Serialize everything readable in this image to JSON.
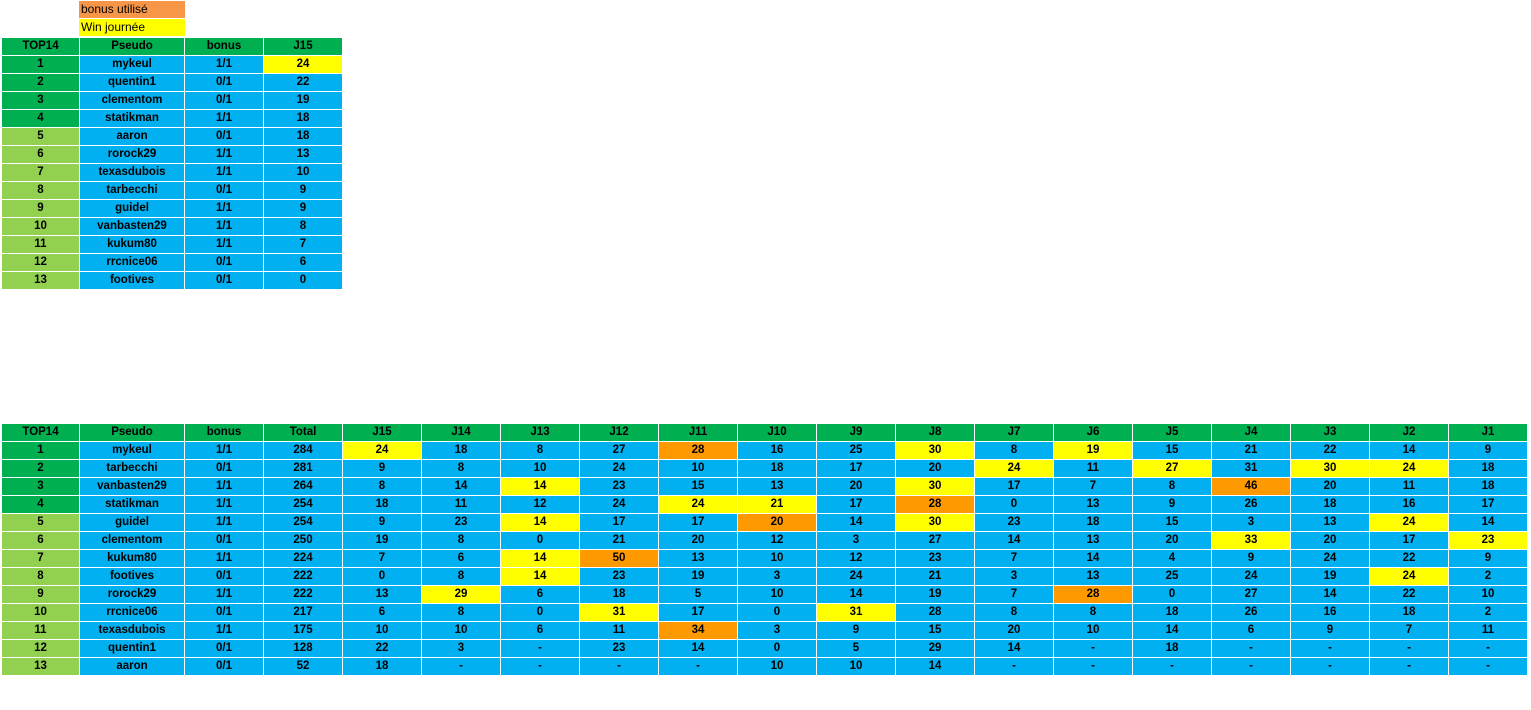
{
  "legend": {
    "bonus_label": "bonus utilisé",
    "win_label": "Win journée",
    "colors": {
      "bonus": "#FF9900",
      "win": "#FFFF00",
      "cell": "#00B0F0",
      "header": "#00B050",
      "rank_top": "#00B050",
      "rank_low": "#92D050"
    }
  },
  "top_table": {
    "headers": [
      "TOP14",
      "Pseudo",
      "bonus",
      "J15"
    ],
    "rows": [
      {
        "rank": "1",
        "pseudo": "mykeul",
        "bonus": "1/1",
        "scores": [
          "24"
        ],
        "marks": [
          "win"
        ]
      },
      {
        "rank": "2",
        "pseudo": "quentin1",
        "bonus": "0/1",
        "scores": [
          "22"
        ],
        "marks": [
          ""
        ]
      },
      {
        "rank": "3",
        "pseudo": "clementom",
        "bonus": "0/1",
        "scores": [
          "19"
        ],
        "marks": [
          ""
        ]
      },
      {
        "rank": "4",
        "pseudo": "statikman",
        "bonus": "1/1",
        "scores": [
          "18"
        ],
        "marks": [
          ""
        ]
      },
      {
        "rank": "5",
        "pseudo": "aaron",
        "bonus": "0/1",
        "scores": [
          "18"
        ],
        "marks": [
          ""
        ]
      },
      {
        "rank": "6",
        "pseudo": "rorock29",
        "bonus": "1/1",
        "scores": [
          "13"
        ],
        "marks": [
          ""
        ]
      },
      {
        "rank": "7",
        "pseudo": "texasdubois",
        "bonus": "1/1",
        "scores": [
          "10"
        ],
        "marks": [
          ""
        ]
      },
      {
        "rank": "8",
        "pseudo": "tarbecchi",
        "bonus": "0/1",
        "scores": [
          "9"
        ],
        "marks": [
          ""
        ]
      },
      {
        "rank": "9",
        "pseudo": "guidel",
        "bonus": "1/1",
        "scores": [
          "9"
        ],
        "marks": [
          ""
        ]
      },
      {
        "rank": "10",
        "pseudo": "vanbasten29",
        "bonus": "1/1",
        "scores": [
          "8"
        ],
        "marks": [
          ""
        ]
      },
      {
        "rank": "11",
        "pseudo": "kukum80",
        "bonus": "1/1",
        "scores": [
          "7"
        ],
        "marks": [
          ""
        ]
      },
      {
        "rank": "12",
        "pseudo": "rrcnice06",
        "bonus": "0/1",
        "scores": [
          "6"
        ],
        "marks": [
          ""
        ]
      },
      {
        "rank": "13",
        "pseudo": "footives",
        "bonus": "0/1",
        "scores": [
          "0"
        ],
        "marks": [
          ""
        ]
      }
    ]
  },
  "main_table": {
    "headers": [
      "TOP14",
      "Pseudo",
      "bonus",
      "Total",
      "J15",
      "J14",
      "J13",
      "J12",
      "J11",
      "J10",
      "J9",
      "J8",
      "J7",
      "J6",
      "J5",
      "J4",
      "J3",
      "J2",
      "J1"
    ],
    "rows": [
      {
        "rank": "1",
        "pseudo": "mykeul",
        "bonus": "1/1",
        "total": "284",
        "scores": [
          "24",
          "18",
          "8",
          "27",
          "28",
          "16",
          "25",
          "30",
          "8",
          "19",
          "15",
          "21",
          "22",
          "14",
          "9"
        ],
        "marks": [
          "win",
          "",
          "",
          "",
          "bonus",
          "",
          "",
          "win",
          "",
          "win",
          "",
          "",
          "",
          "",
          ""
        ]
      },
      {
        "rank": "2",
        "pseudo": "tarbecchi",
        "bonus": "0/1",
        "total": "281",
        "scores": [
          "9",
          "8",
          "10",
          "24",
          "10",
          "18",
          "17",
          "20",
          "24",
          "11",
          "27",
          "31",
          "30",
          "24",
          "18"
        ],
        "marks": [
          "",
          "",
          "",
          "",
          "",
          "",
          "",
          "",
          "win",
          "",
          "win",
          "",
          "win",
          "win",
          ""
        ]
      },
      {
        "rank": "3",
        "pseudo": "vanbasten29",
        "bonus": "1/1",
        "total": "264",
        "scores": [
          "8",
          "14",
          "14",
          "23",
          "15",
          "13",
          "20",
          "30",
          "17",
          "7",
          "8",
          "46",
          "20",
          "11",
          "18"
        ],
        "marks": [
          "",
          "",
          "win",
          "",
          "",
          "",
          "",
          "win",
          "",
          "",
          "",
          "bonus",
          "",
          "",
          ""
        ]
      },
      {
        "rank": "4",
        "pseudo": "statikman",
        "bonus": "1/1",
        "total": "254",
        "scores": [
          "18",
          "11",
          "12",
          "24",
          "24",
          "21",
          "17",
          "28",
          "0",
          "13",
          "9",
          "26",
          "18",
          "16",
          "17"
        ],
        "marks": [
          "",
          "",
          "",
          "",
          "win",
          "win",
          "",
          "bonus",
          "",
          "",
          "",
          "",
          "",
          "",
          ""
        ]
      },
      {
        "rank": "5",
        "pseudo": "guidel",
        "bonus": "1/1",
        "total": "254",
        "scores": [
          "9",
          "23",
          "14",
          "17",
          "17",
          "20",
          "14",
          "30",
          "23",
          "18",
          "15",
          "3",
          "13",
          "24",
          "14"
        ],
        "marks": [
          "",
          "",
          "win",
          "",
          "",
          "bonus",
          "",
          "win",
          "",
          "",
          "",
          "",
          "",
          "win",
          ""
        ]
      },
      {
        "rank": "6",
        "pseudo": "clementom",
        "bonus": "0/1",
        "total": "250",
        "scores": [
          "19",
          "8",
          "0",
          "21",
          "20",
          "12",
          "3",
          "27",
          "14",
          "13",
          "20",
          "33",
          "20",
          "17",
          "23"
        ],
        "marks": [
          "",
          "",
          "",
          "",
          "",
          "",
          "",
          "",
          "",
          "",
          "",
          "win",
          "",
          "",
          "win"
        ]
      },
      {
        "rank": "7",
        "pseudo": "kukum80",
        "bonus": "1/1",
        "total": "224",
        "scores": [
          "7",
          "6",
          "14",
          "50",
          "13",
          "10",
          "12",
          "23",
          "7",
          "14",
          "4",
          "9",
          "24",
          "22",
          "9"
        ],
        "marks": [
          "",
          "",
          "win",
          "bonus",
          "",
          "",
          "",
          "",
          "",
          "",
          "",
          "",
          "",
          "",
          ""
        ]
      },
      {
        "rank": "8",
        "pseudo": "footives",
        "bonus": "0/1",
        "total": "222",
        "scores": [
          "0",
          "8",
          "14",
          "23",
          "19",
          "3",
          "24",
          "21",
          "3",
          "13",
          "25",
          "24",
          "19",
          "24",
          "2"
        ],
        "marks": [
          "",
          "",
          "win",
          "",
          "",
          "",
          "",
          "",
          "",
          "",
          "",
          "",
          "",
          "win",
          ""
        ]
      },
      {
        "rank": "9",
        "pseudo": "rorock29",
        "bonus": "1/1",
        "total": "222",
        "scores": [
          "13",
          "29",
          "6",
          "18",
          "5",
          "10",
          "14",
          "19",
          "7",
          "28",
          "0",
          "27",
          "14",
          "22",
          "10"
        ],
        "marks": [
          "",
          "win",
          "",
          "",
          "",
          "",
          "",
          "",
          "",
          "bonus",
          "",
          "",
          "",
          "",
          ""
        ]
      },
      {
        "rank": "10",
        "pseudo": "rrcnice06",
        "bonus": "0/1",
        "total": "217",
        "scores": [
          "6",
          "8",
          "0",
          "31",
          "17",
          "0",
          "31",
          "28",
          "8",
          "8",
          "18",
          "26",
          "16",
          "18",
          "2"
        ],
        "marks": [
          "",
          "",
          "",
          "win",
          "",
          "",
          "win",
          "",
          "",
          "",
          "",
          "",
          "",
          "",
          ""
        ]
      },
      {
        "rank": "11",
        "pseudo": "texasdubois",
        "bonus": "1/1",
        "total": "175",
        "scores": [
          "10",
          "10",
          "6",
          "11",
          "34",
          "3",
          "9",
          "15",
          "20",
          "10",
          "14",
          "6",
          "9",
          "7",
          "11"
        ],
        "marks": [
          "",
          "",
          "",
          "",
          "bonus",
          "",
          "",
          "",
          "",
          "",
          "",
          "",
          "",
          "",
          ""
        ]
      },
      {
        "rank": "12",
        "pseudo": "quentin1",
        "bonus": "0/1",
        "total": "128",
        "scores": [
          "22",
          "3",
          "-",
          "23",
          "14",
          "0",
          "5",
          "29",
          "14",
          "-",
          "18",
          "-",
          "-",
          "-",
          "-"
        ],
        "marks": [
          "",
          "",
          "",
          "",
          "",
          "",
          "",
          "",
          "",
          "",
          "",
          "",
          "",
          "",
          ""
        ]
      },
      {
        "rank": "13",
        "pseudo": "aaron",
        "bonus": "0/1",
        "total": "52",
        "scores": [
          "18",
          "-",
          "-",
          "-",
          "-",
          "10",
          "10",
          "14",
          "-",
          "-",
          "-",
          "-",
          "-",
          "-",
          "-"
        ],
        "marks": [
          "",
          "",
          "",
          "",
          "",
          "",
          "",
          "",
          "",
          "",
          "",
          "",
          "",
          "",
          ""
        ]
      }
    ]
  }
}
